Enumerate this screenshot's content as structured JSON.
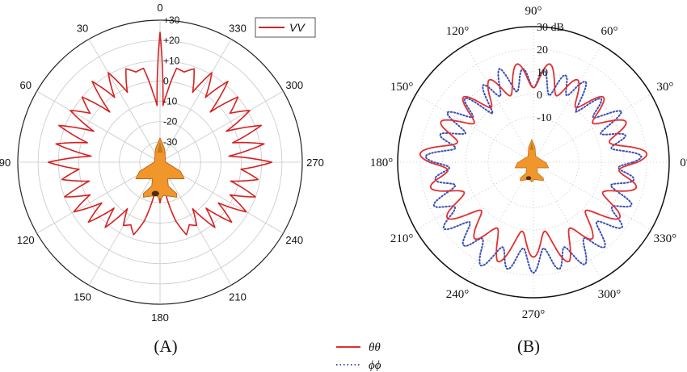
{
  "chart_data": [
    {
      "type": "polar-line",
      "panel_label": "(A)",
      "angle_ticks": [
        "0",
        "30",
        "60",
        "90",
        "120",
        "150",
        "180",
        "210",
        "240",
        "270",
        "300",
        "330"
      ],
      "radial_ticks": [
        "+30",
        "+20",
        "+10",
        "0",
        "-10",
        "-20",
        "-30"
      ],
      "rlim": [
        -40,
        30
      ],
      "legend": {
        "placement": "top-right",
        "entries": [
          "VV"
        ]
      },
      "colors": {
        "VV": "#d62020"
      },
      "series": [
        {
          "name": "VV",
          "angles_deg": [
            0,
            3,
            6,
            10,
            15,
            20,
            25,
            30,
            35,
            40,
            45,
            50,
            55,
            60,
            65,
            70,
            75,
            80,
            85,
            90,
            95,
            100,
            105,
            110,
            115,
            120,
            125,
            130,
            135,
            140,
            145,
            150,
            155,
            160,
            165,
            170,
            175,
            180
          ],
          "values_db": [
            24,
            -12,
            -5,
            7,
            6,
            9,
            -2,
            11,
            -1,
            12,
            -5,
            10,
            2,
            11,
            -4,
            13,
            -3,
            12,
            -6,
            15,
            0,
            9,
            -4,
            10,
            -2,
            9,
            -5,
            6,
            -8,
            2,
            -12,
            -4,
            -6,
            -2,
            -10,
            -24,
            -28,
            -20
          ]
        }
      ]
    },
    {
      "type": "polar-line",
      "panel_label": "(B)",
      "angle_ticks": [
        "0°",
        "30°",
        "60°",
        "90°",
        "120°",
        "150°",
        "180°",
        "210°",
        "240°",
        "270°",
        "300°",
        "330°"
      ],
      "radial_ticks": [
        "30 dB",
        "20",
        "10",
        "0",
        "-10"
      ],
      "rlim": [
        -30,
        30
      ],
      "legend": {
        "placement": "bottom-center",
        "entries": [
          "θθ",
          "ϕϕ"
        ]
      },
      "colors": {
        "θθ": "#e03030",
        "ϕϕ": "#3c4fb8"
      },
      "series": [
        {
          "name": "θθ",
          "angles_deg": [
            0,
            10,
            20,
            30,
            40,
            50,
            60,
            70,
            80,
            90,
            100,
            110,
            120,
            130,
            140,
            150,
            160,
            170,
            180,
            190,
            200,
            210,
            220,
            230,
            240,
            250,
            260,
            270,
            280,
            290,
            300,
            310,
            320,
            330,
            340,
            350
          ],
          "values_db": [
            16,
            12,
            9,
            8,
            6,
            7,
            5,
            7,
            8,
            9,
            8,
            7,
            5,
            7,
            6,
            8,
            9,
            12,
            16,
            12,
            9,
            10,
            8,
            6,
            9,
            11,
            7,
            6,
            7,
            11,
            9,
            6,
            8,
            10,
            9,
            12
          ]
        },
        {
          "name": "ϕϕ",
          "angles_deg": [
            0,
            10,
            20,
            30,
            40,
            50,
            60,
            70,
            80,
            90,
            100,
            110,
            120,
            130,
            140,
            150,
            160,
            170,
            180,
            190,
            200,
            210,
            220,
            230,
            240,
            250,
            260,
            270,
            280,
            290,
            300,
            310,
            320,
            330,
            340,
            350
          ],
          "values_db": [
            14,
            10,
            6,
            10,
            7,
            4,
            9,
            6,
            5,
            8,
            6,
            9,
            7,
            3,
            8,
            9,
            7,
            10,
            14,
            9,
            12,
            15,
            14,
            13,
            17,
            15,
            13,
            14,
            13,
            15,
            16,
            14,
            13,
            15,
            11,
            10
          ]
        }
      ]
    }
  ]
}
